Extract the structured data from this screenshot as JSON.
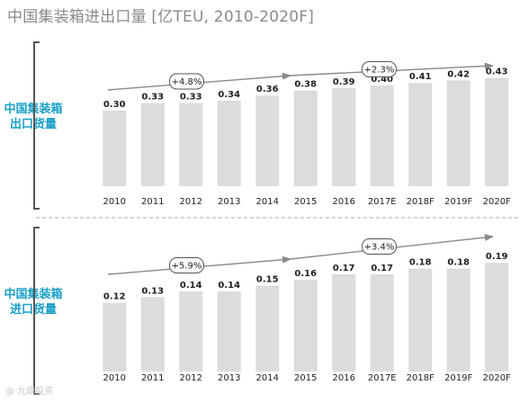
{
  "title": "中国集装箱进出口量 [亿TEU, 2010-2020F]",
  "watermark": "@ 九鼎投资",
  "chart_data": [
    {
      "type": "bar",
      "side_label": "中国集装箱出口货量",
      "categories": [
        "2010",
        "2011",
        "2012",
        "2013",
        "2014",
        "2015",
        "2016",
        "2017E",
        "2018F",
        "2019F",
        "2020F"
      ],
      "values": [
        0.3,
        0.33,
        0.33,
        0.34,
        0.36,
        0.38,
        0.39,
        0.4,
        0.41,
        0.42,
        0.43
      ],
      "value_labels": [
        "0.30",
        "0.33",
        "0.33",
        "0.34",
        "0.36",
        "0.38",
        "0.39",
        "0.40",
        "0.41",
        "0.42",
        "0.43"
      ],
      "ylim": [
        0,
        0.5
      ],
      "bar_color": "#dcdcdc",
      "annotations": [
        {
          "label": "+4.8%",
          "from": "2010",
          "to": "2015"
        },
        {
          "label": "+2.3%",
          "from": "2015",
          "to": "2020F"
        }
      ]
    },
    {
      "type": "bar",
      "side_label": "中国集装箱进口货量",
      "categories": [
        "2010",
        "2011",
        "2012",
        "2013",
        "2014",
        "2015",
        "2016",
        "2017E",
        "2018F",
        "2019F",
        "2020F"
      ],
      "values": [
        0.12,
        0.13,
        0.14,
        0.14,
        0.15,
        0.16,
        0.17,
        0.17,
        0.18,
        0.18,
        0.19
      ],
      "value_labels": [
        "0.12",
        "0.13",
        "0.14",
        "0.14",
        "0.15",
        "0.16",
        "0.17",
        "0.17",
        "0.18",
        "0.18",
        "0.19"
      ],
      "ylim": [
        0,
        0.22
      ],
      "bar_color": "#dcdcdc",
      "annotations": [
        {
          "label": "+5.9%",
          "from": "2010",
          "to": "2015"
        },
        {
          "label": "+3.4%",
          "from": "2015",
          "to": "2020F"
        }
      ]
    }
  ]
}
